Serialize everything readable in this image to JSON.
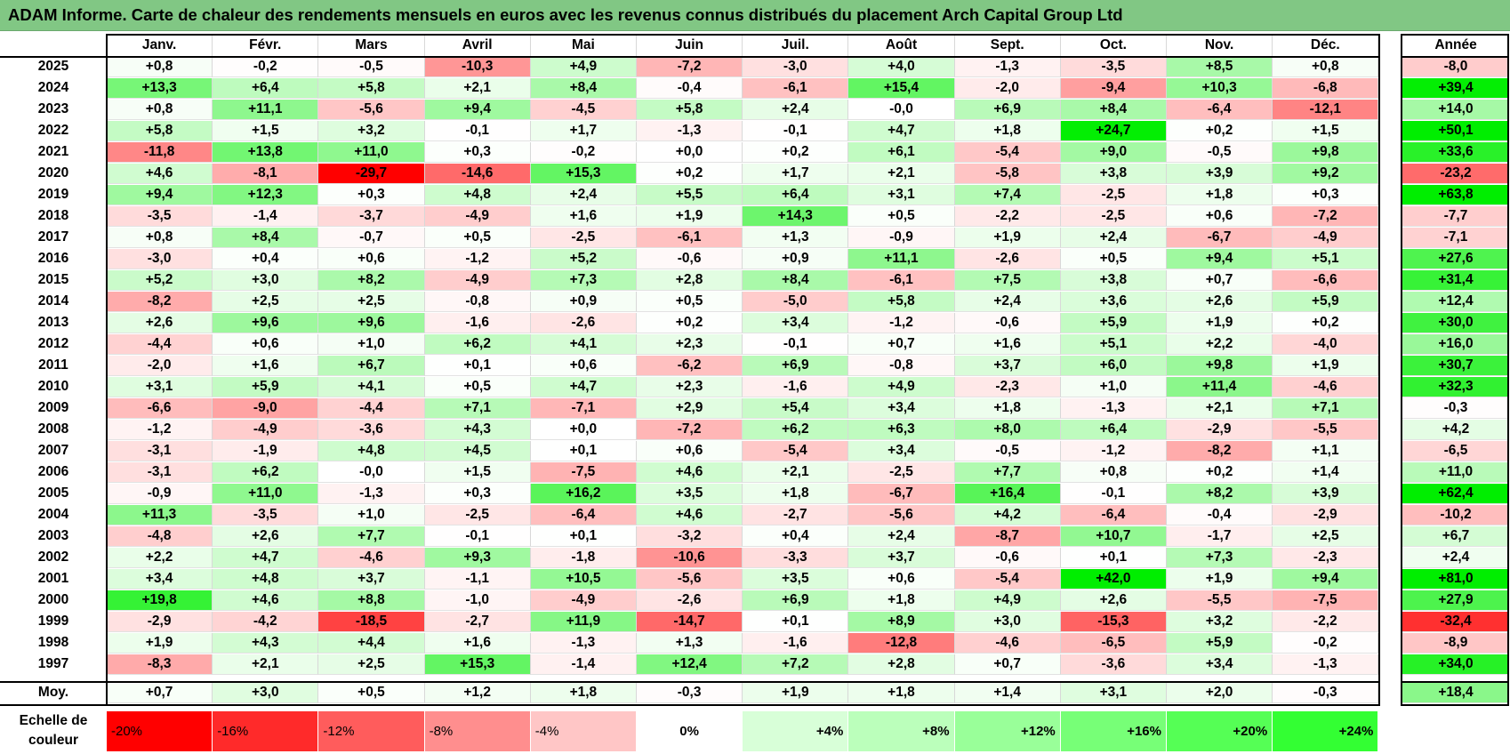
{
  "title": "ADAM Informe. Carte de chaleur des rendements mensuels en euros avec les revenus connus distribués du placement Arch Capital Group Ltd",
  "chart_data": {
    "type": "heatmap",
    "title": "ADAM Informe. Carte de chaleur des rendements mensuels en euros avec les revenus connus distribués du placement Arch Capital Group Ltd",
    "columns": [
      "Janv.",
      "Févr.",
      "Mars",
      "Avril",
      "Mai",
      "Juin",
      "Juil.",
      "Août",
      "Sept.",
      "Oct.",
      "Nov.",
      "Déc."
    ],
    "year_header": "Année",
    "rows": [
      {
        "year": "2025",
        "values": [
          "+0,8",
          "-0,2",
          "-0,5",
          "-10,3",
          "+4,9",
          "-7,2",
          "-3,0",
          "+4,0",
          "-1,3",
          "-3,5",
          "+8,5",
          "+0,8"
        ],
        "annual": "-8,0"
      },
      {
        "year": "2024",
        "values": [
          "+13,3",
          "+6,4",
          "+5,8",
          "+2,1",
          "+8,4",
          "-0,4",
          "-6,1",
          "+15,4",
          "-2,0",
          "-9,4",
          "+10,3",
          "-6,8"
        ],
        "annual": "+39,4"
      },
      {
        "year": "2023",
        "values": [
          "+0,8",
          "+11,1",
          "-5,6",
          "+9,4",
          "-4,5",
          "+5,8",
          "+2,4",
          "-0,0",
          "+6,9",
          "+8,4",
          "-6,4",
          "-12,1"
        ],
        "annual": "+14,0"
      },
      {
        "year": "2022",
        "values": [
          "+5,8",
          "+1,5",
          "+3,2",
          "-0,1",
          "+1,7",
          "-1,3",
          "-0,1",
          "+4,7",
          "+1,8",
          "+24,7",
          "+0,2",
          "+1,5"
        ],
        "annual": "+50,1"
      },
      {
        "year": "2021",
        "values": [
          "-11,8",
          "+13,8",
          "+11,0",
          "+0,3",
          "-0,2",
          "+0,0",
          "+0,2",
          "+6,1",
          "-5,4",
          "+9,0",
          "-0,5",
          "+9,8"
        ],
        "annual": "+33,6"
      },
      {
        "year": "2020",
        "values": [
          "+4,6",
          "-8,1",
          "-29,7",
          "-14,6",
          "+15,3",
          "+0,2",
          "+1,7",
          "+2,1",
          "-5,8",
          "+3,8",
          "+3,9",
          "+9,2"
        ],
        "annual": "-23,2"
      },
      {
        "year": "2019",
        "values": [
          "+9,4",
          "+12,3",
          "+0,3",
          "+4,8",
          "+2,4",
          "+5,5",
          "+6,4",
          "+3,1",
          "+7,4",
          "-2,5",
          "+1,8",
          "+0,3"
        ],
        "annual": "+63,8"
      },
      {
        "year": "2018",
        "values": [
          "-3,5",
          "-1,4",
          "-3,7",
          "-4,9",
          "+1,6",
          "+1,9",
          "+14,3",
          "+0,5",
          "-2,2",
          "-2,5",
          "+0,6",
          "-7,2"
        ],
        "annual": "-7,7"
      },
      {
        "year": "2017",
        "values": [
          "+0,8",
          "+8,4",
          "-0,7",
          "+0,5",
          "-2,5",
          "-6,1",
          "+1,3",
          "-0,9",
          "+1,9",
          "+2,4",
          "-6,7",
          "-4,9"
        ],
        "annual": "-7,1"
      },
      {
        "year": "2016",
        "values": [
          "-3,0",
          "+0,4",
          "+0,6",
          "-1,2",
          "+5,2",
          "-0,6",
          "+0,9",
          "+11,1",
          "-2,6",
          "+0,5",
          "+9,4",
          "+5,1"
        ],
        "annual": "+27,6"
      },
      {
        "year": "2015",
        "values": [
          "+5,2",
          "+3,0",
          "+8,2",
          "-4,9",
          "+7,3",
          "+2,8",
          "+8,4",
          "-6,1",
          "+7,5",
          "+3,8",
          "+0,7",
          "-6,6"
        ],
        "annual": "+31,4"
      },
      {
        "year": "2014",
        "values": [
          "-8,2",
          "+2,5",
          "+2,5",
          "-0,8",
          "+0,9",
          "+0,5",
          "-5,0",
          "+5,8",
          "+2,4",
          "+3,6",
          "+2,6",
          "+5,9"
        ],
        "annual": "+12,4"
      },
      {
        "year": "2013",
        "values": [
          "+2,6",
          "+9,6",
          "+9,6",
          "-1,6",
          "-2,6",
          "+0,2",
          "+3,4",
          "-1,2",
          "-0,6",
          "+5,9",
          "+1,9",
          "+0,2"
        ],
        "annual": "+30,0"
      },
      {
        "year": "2012",
        "values": [
          "-4,4",
          "+0,6",
          "+1,0",
          "+6,2",
          "+4,1",
          "+2,3",
          "-0,1",
          "+0,7",
          "+1,6",
          "+5,1",
          "+2,2",
          "-4,0"
        ],
        "annual": "+16,0"
      },
      {
        "year": "2011",
        "values": [
          "-2,0",
          "+1,6",
          "+6,7",
          "+0,1",
          "+0,6",
          "-6,2",
          "+6,9",
          "-0,8",
          "+3,7",
          "+6,0",
          "+9,8",
          "+1,9"
        ],
        "annual": "+30,7"
      },
      {
        "year": "2010",
        "values": [
          "+3,1",
          "+5,9",
          "+4,1",
          "+0,5",
          "+4,7",
          "+2,3",
          "-1,6",
          "+4,9",
          "-2,3",
          "+1,0",
          "+11,4",
          "-4,6"
        ],
        "annual": "+32,3"
      },
      {
        "year": "2009",
        "values": [
          "-6,6",
          "-9,0",
          "-4,4",
          "+7,1",
          "-7,1",
          "+2,9",
          "+5,4",
          "+3,4",
          "+1,8",
          "-1,3",
          "+2,1",
          "+7,1"
        ],
        "annual": "-0,3"
      },
      {
        "year": "2008",
        "values": [
          "-1,2",
          "-4,9",
          "-3,6",
          "+4,3",
          "+0,0",
          "-7,2",
          "+6,2",
          "+6,3",
          "+8,0",
          "+6,4",
          "-2,9",
          "-5,5"
        ],
        "annual": "+4,2"
      },
      {
        "year": "2007",
        "values": [
          "-3,1",
          "-1,9",
          "+4,8",
          "+4,5",
          "+0,1",
          "+0,6",
          "-5,4",
          "+3,4",
          "-0,5",
          "-1,2",
          "-8,2",
          "+1,1"
        ],
        "annual": "-6,5"
      },
      {
        "year": "2006",
        "values": [
          "-3,1",
          "+6,2",
          "-0,0",
          "+1,5",
          "-7,5",
          "+4,6",
          "+2,1",
          "-2,5",
          "+7,7",
          "+0,8",
          "+0,2",
          "+1,4"
        ],
        "annual": "+11,0"
      },
      {
        "year": "2005",
        "values": [
          "-0,9",
          "+11,0",
          "-1,3",
          "+0,3",
          "+16,2",
          "+3,5",
          "+1,8",
          "-6,7",
          "+16,4",
          "-0,1",
          "+8,2",
          "+3,9"
        ],
        "annual": "+62,4"
      },
      {
        "year": "2004",
        "values": [
          "+11,3",
          "-3,5",
          "+1,0",
          "-2,5",
          "-6,4",
          "+4,6",
          "-2,7",
          "-5,6",
          "+4,2",
          "-6,4",
          "-0,4",
          "-2,9"
        ],
        "annual": "-10,2"
      },
      {
        "year": "2003",
        "values": [
          "-4,8",
          "+2,6",
          "+7,7",
          "-0,1",
          "+0,1",
          "-3,2",
          "+0,4",
          "+2,4",
          "-8,7",
          "+10,7",
          "-1,7",
          "+2,5"
        ],
        "annual": "+6,7"
      },
      {
        "year": "2002",
        "values": [
          "+2,2",
          "+4,7",
          "-4,6",
          "+9,3",
          "-1,8",
          "-10,6",
          "-3,3",
          "+3,7",
          "-0,6",
          "+0,1",
          "+7,3",
          "-2,3"
        ],
        "annual": "+2,4"
      },
      {
        "year": "2001",
        "values": [
          "+3,4",
          "+4,8",
          "+3,7",
          "-1,1",
          "+10,5",
          "-5,6",
          "+3,5",
          "+0,6",
          "-5,4",
          "+42,0",
          "+1,9",
          "+9,4"
        ],
        "annual": "+81,0"
      },
      {
        "year": "2000",
        "values": [
          "+19,8",
          "+4,6",
          "+8,8",
          "-1,0",
          "-4,9",
          "-2,6",
          "+6,9",
          "+1,8",
          "+4,9",
          "+2,6",
          "-5,5",
          "-7,5"
        ],
        "annual": "+27,9"
      },
      {
        "year": "1999",
        "values": [
          "-2,9",
          "-4,2",
          "-18,5",
          "-2,7",
          "+11,9",
          "-14,7",
          "+0,1",
          "+8,9",
          "+3,0",
          "-15,3",
          "+3,2",
          "-2,2"
        ],
        "annual": "-32,4"
      },
      {
        "year": "1998",
        "values": [
          "+1,9",
          "+4,3",
          "+4,4",
          "+1,6",
          "-1,3",
          "+1,3",
          "-1,6",
          "-12,8",
          "-4,6",
          "-6,5",
          "+5,9",
          "-0,2"
        ],
        "annual": "-8,9"
      },
      {
        "year": "1997",
        "values": [
          "-8,3",
          "+2,1",
          "+2,5",
          "+15,3",
          "-1,4",
          "+12,4",
          "+7,2",
          "+2,8",
          "+0,7",
          "-3,6",
          "+3,4",
          "-1,3"
        ],
        "annual": "+34,0"
      }
    ],
    "average": {
      "label": "Moy.",
      "values": [
        "+0,7",
        "+3,0",
        "+0,5",
        "+1,2",
        "+1,8",
        "-0,3",
        "+1,9",
        "+1,8",
        "+1,4",
        "+3,1",
        "+2,0",
        "-0,3"
      ],
      "annual": "+18,4"
    },
    "scale": {
      "label": "Echelle de couleur",
      "steps": [
        "-20%",
        "-16%",
        "-12%",
        "-8%",
        "-4%",
        "0%",
        "+4%",
        "+8%",
        "+12%",
        "+16%",
        "+20%",
        "+24%"
      ],
      "colors": [
        "#ff0000",
        "#ff2a2a",
        "#ff5c5c",
        "#ff8e8e",
        "#ffc6c6",
        "#ffffff",
        "#d8ffd8",
        "#bbffbb",
        "#99ff99",
        "#77ff77",
        "#55ff55",
        "#33ff33"
      ]
    },
    "colors": {
      "negative": "#ff0000",
      "neutral": "#ffffff",
      "positive": "#00ee00",
      "title_bar": "#81c784"
    }
  }
}
